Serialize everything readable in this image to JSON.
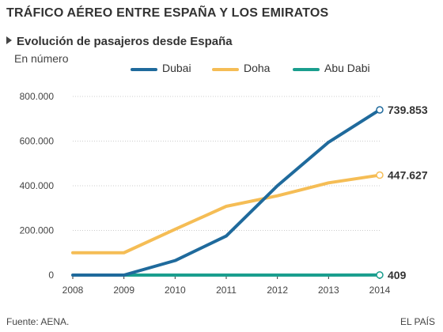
{
  "header": {
    "title": "TRÁFICO AÉREO ENTRE ESPAÑA Y LOS EMIRATOS",
    "subtitle": "Evolución de pasajeros desde España",
    "unit": "En número"
  },
  "footer": {
    "source": "Fuente: AENA.",
    "brand": "EL PAÍS"
  },
  "colors": {
    "dubai": "#1f6a9c",
    "doha": "#f5bd55",
    "abu_dabi": "#1a9e8e",
    "grid": "#cccccc",
    "axis": "#333333"
  },
  "chart_data": {
    "type": "line",
    "title": "TRÁFICO AÉREO ENTRE ESPAÑA Y LOS EMIRATOS",
    "subtitle": "Evolución de pasajeros desde España",
    "ylabel": "En número",
    "xlabel": "",
    "categories": [
      "2008",
      "2009",
      "2010",
      "2011",
      "2012",
      "2013",
      "2014"
    ],
    "ylim": [
      0,
      800000
    ],
    "yticks": [
      0,
      200000,
      400000,
      600000,
      800000
    ],
    "ytick_labels": [
      "0",
      "200.000",
      "400.000",
      "600.000",
      "800.000"
    ],
    "grid": true,
    "legend_position": "top",
    "series": [
      {
        "name": "Dubai",
        "color": "#1f6a9c",
        "values": [
          0,
          0,
          65000,
          175000,
          400000,
          595000,
          739853
        ],
        "end_label": "739.853"
      },
      {
        "name": "Doha",
        "color": "#f5bd55",
        "values": [
          100000,
          100000,
          205000,
          308000,
          355000,
          413000,
          447627
        ],
        "end_label": "447.627"
      },
      {
        "name": "Abu Dabi",
        "color": "#1a9e8e",
        "values": [
          null,
          0,
          0,
          0,
          0,
          0,
          409
        ],
        "end_label": "409"
      }
    ]
  }
}
